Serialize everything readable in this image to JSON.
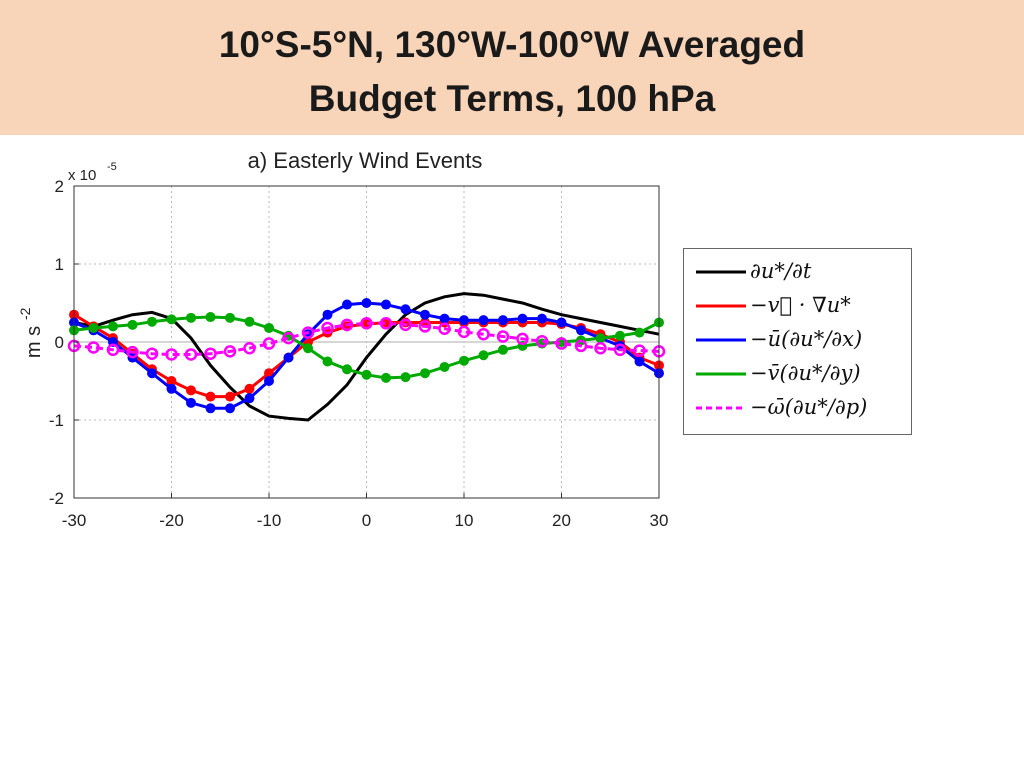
{
  "header": {
    "title_line1": "10°S-5°N, 130°W-100°W Averaged",
    "title_line2": "Budget Terms, 100 hPa",
    "background_color": "#f8d5b8"
  },
  "chart_data": {
    "type": "line",
    "title": "a) Easterly Wind Events",
    "ylabel": "m s-2",
    "ylabel_base": "m s",
    "ylabel_exp": "-2",
    "y_multiplier": "x 10",
    "y_multiplier_exp": "-5",
    "xlim": [
      -30,
      30
    ],
    "ylim": [
      -2,
      2
    ],
    "xticks": [
      "-30",
      "-20",
      "-10",
      "0",
      "10",
      "20",
      "30"
    ],
    "yticks": [
      "2",
      "1",
      "0",
      "-1",
      "-2"
    ],
    "grid": true,
    "legend_position": "right",
    "x": [
      -30,
      -28,
      -26,
      -24,
      -22,
      -20,
      -18,
      -16,
      -14,
      -12,
      -10,
      -8,
      -6,
      -4,
      -2,
      0,
      2,
      4,
      6,
      8,
      10,
      12,
      14,
      16,
      18,
      20,
      22,
      24,
      26,
      28,
      30
    ],
    "series": [
      {
        "name": "∂u*/∂t",
        "color": "#000000",
        "style": "solid",
        "markers": false,
        "values": [
          0.25,
          0.2,
          0.28,
          0.35,
          0.38,
          0.3,
          0.05,
          -0.3,
          -0.58,
          -0.82,
          -0.95,
          -0.98,
          -1.0,
          -0.8,
          -0.55,
          -0.2,
          0.1,
          0.35,
          0.5,
          0.58,
          0.62,
          0.6,
          0.55,
          0.5,
          0.42,
          0.35,
          0.3,
          0.25,
          0.2,
          0.15,
          0.1
        ]
      },
      {
        "name": "−v⃗ · ∇u*",
        "color": "#ff0000",
        "style": "solid",
        "markers": true,
        "values": [
          0.35,
          0.2,
          0.05,
          -0.15,
          -0.35,
          -0.5,
          -0.62,
          -0.7,
          -0.7,
          -0.6,
          -0.4,
          -0.2,
          0.0,
          0.12,
          0.2,
          0.23,
          0.25,
          0.25,
          0.25,
          0.25,
          0.25,
          0.25,
          0.25,
          0.25,
          0.25,
          0.23,
          0.18,
          0.1,
          0.0,
          -0.2,
          -0.3
        ]
      },
      {
        "name": "−ū(∂u*/∂x)",
        "color": "#0000ff",
        "style": "solid",
        "markers": true,
        "values": [
          0.25,
          0.15,
          0.0,
          -0.2,
          -0.4,
          -0.6,
          -0.78,
          -0.85,
          -0.85,
          -0.72,
          -0.5,
          -0.2,
          0.1,
          0.35,
          0.48,
          0.5,
          0.48,
          0.42,
          0.35,
          0.3,
          0.28,
          0.28,
          0.28,
          0.3,
          0.3,
          0.25,
          0.15,
          0.05,
          -0.05,
          -0.25,
          -0.4
        ]
      },
      {
        "name": "−v̄(∂u*/∂y)",
        "color": "#00aa00",
        "style": "solid",
        "markers": true,
        "values": [
          0.15,
          0.18,
          0.2,
          0.22,
          0.26,
          0.29,
          0.31,
          0.32,
          0.31,
          0.26,
          0.18,
          0.08,
          -0.08,
          -0.25,
          -0.35,
          -0.42,
          -0.46,
          -0.45,
          -0.4,
          -0.32,
          -0.24,
          -0.17,
          -0.1,
          -0.05,
          -0.02,
          0.0,
          0.02,
          0.05,
          0.08,
          0.12,
          0.25
        ]
      },
      {
        "name": "−ω̄(∂u*/∂p)",
        "color": "#ff00ff",
        "style": "dashed",
        "markers": true,
        "values": [
          -0.05,
          -0.07,
          -0.1,
          -0.13,
          -0.15,
          -0.16,
          -0.16,
          -0.15,
          -0.12,
          -0.08,
          -0.02,
          0.05,
          0.12,
          0.18,
          0.22,
          0.24,
          0.24,
          0.22,
          0.2,
          0.17,
          0.13,
          0.1,
          0.07,
          0.04,
          0.01,
          -0.02,
          -0.05,
          -0.08,
          -0.1,
          -0.11,
          -0.12
        ]
      }
    ]
  }
}
